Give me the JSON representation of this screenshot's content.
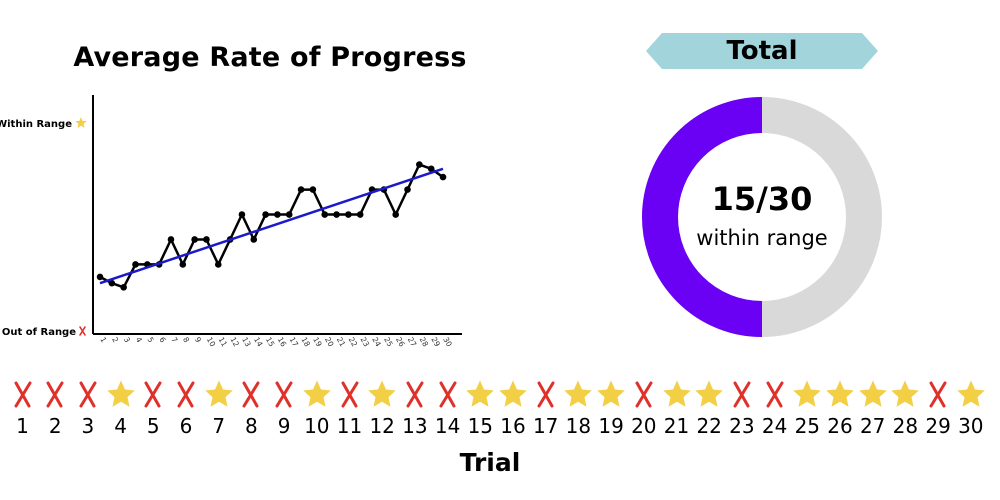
{
  "chart_data": {
    "type": "line",
    "title": "Average Rate of Progress",
    "x": [
      1,
      2,
      3,
      4,
      5,
      6,
      7,
      8,
      9,
      10,
      11,
      12,
      13,
      14,
      15,
      16,
      17,
      18,
      19,
      20,
      21,
      22,
      23,
      24,
      25,
      26,
      27,
      28,
      29,
      30
    ],
    "y_tick_labels": [
      "Out of Range",
      "Within Range"
    ],
    "series": [
      {
        "values": [
          0.26,
          0.23,
          0.21,
          0.32,
          0.32,
          0.32,
          0.44,
          0.32,
          0.44,
          0.44,
          0.32,
          0.44,
          0.56,
          0.44,
          0.56,
          0.56,
          0.56,
          0.68,
          0.68,
          0.56,
          0.56,
          0.56,
          0.56,
          0.68,
          0.68,
          0.56,
          0.68,
          0.8,
          0.78,
          0.74
        ]
      }
    ],
    "trendline": {
      "start": [
        1,
        0.23
      ],
      "end": [
        30,
        0.78
      ]
    },
    "xlim": [
      1,
      30
    ],
    "ylim": [
      0,
      1
    ],
    "grid": false
  },
  "total": {
    "label": "Total",
    "value": "15/30",
    "caption": "within range",
    "within": 15,
    "count": 30
  },
  "trials": {
    "axis_label": "Trial",
    "results": [
      false,
      false,
      false,
      true,
      false,
      false,
      true,
      false,
      false,
      true,
      false,
      true,
      false,
      false,
      true,
      true,
      false,
      true,
      true,
      false,
      true,
      true,
      false,
      false,
      true,
      true,
      true,
      true,
      false,
      true
    ]
  },
  "colors": {
    "line": "#000000",
    "trendline": "#1a1acc",
    "donut_filled": "#6a00f4",
    "donut_empty": "#d9d9d9",
    "banner": "#a2d4dc",
    "cross": "#e0302a",
    "star": "#f2cf45"
  },
  "icons": {
    "within": "star-icon",
    "out": "cross-icon"
  }
}
